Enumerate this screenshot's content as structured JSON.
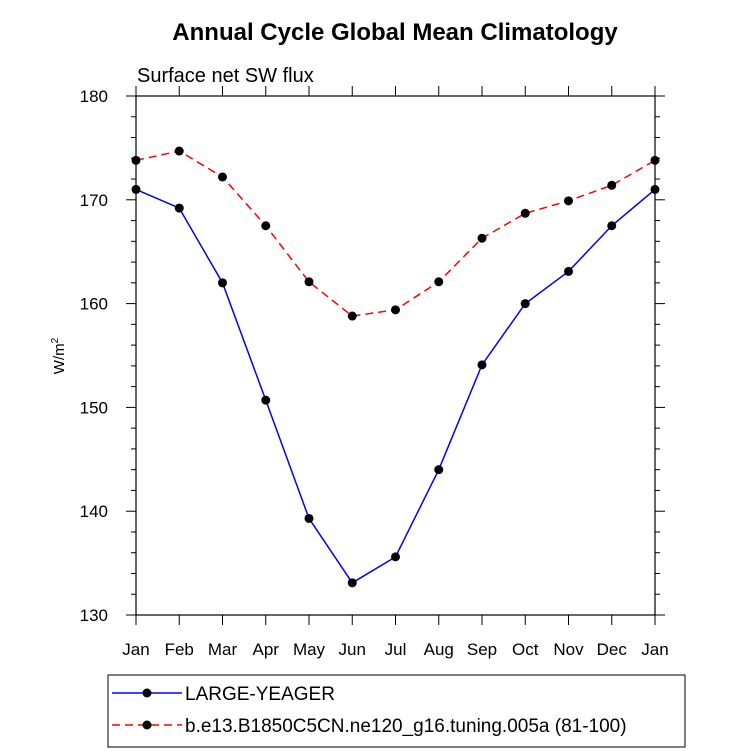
{
  "chart_data": {
    "type": "line",
    "title": "Annual Cycle Global Mean Climatology",
    "subtitle": "Surface net SW flux",
    "ylabel": "W/m",
    "ylabel_superscript": "2",
    "xlabel": "",
    "categories": [
      "Jan",
      "Feb",
      "Mar",
      "Apr",
      "May",
      "Jun",
      "Jul",
      "Aug",
      "Sep",
      "Oct",
      "Nov",
      "Dec",
      "Jan"
    ],
    "ylim": [
      130,
      180
    ],
    "yticks": [
      130,
      140,
      150,
      160,
      170,
      180
    ],
    "ytick_labels": [
      "130",
      "140",
      "150",
      "160",
      "170",
      "180"
    ],
    "legend_position": "bottom",
    "series": [
      {
        "name": "LARGE-YEAGER",
        "color": "#0000ff",
        "dash": "solid",
        "marker": "filled-circle",
        "values": [
          171.0,
          169.2,
          162.0,
          150.7,
          139.3,
          133.1,
          135.6,
          144.0,
          154.1,
          160.0,
          163.1,
          167.5,
          171.0
        ]
      },
      {
        "name": "b.e13.B1850C5CN.ne120_g16.tuning.005a (81-100)",
        "color": "#ff0000",
        "dash": "dashed",
        "marker": "filled-circle",
        "values": [
          173.8,
          174.7,
          172.2,
          167.5,
          162.1,
          158.8,
          159.4,
          162.1,
          166.3,
          168.7,
          169.9,
          171.4,
          173.8
        ]
      }
    ]
  }
}
